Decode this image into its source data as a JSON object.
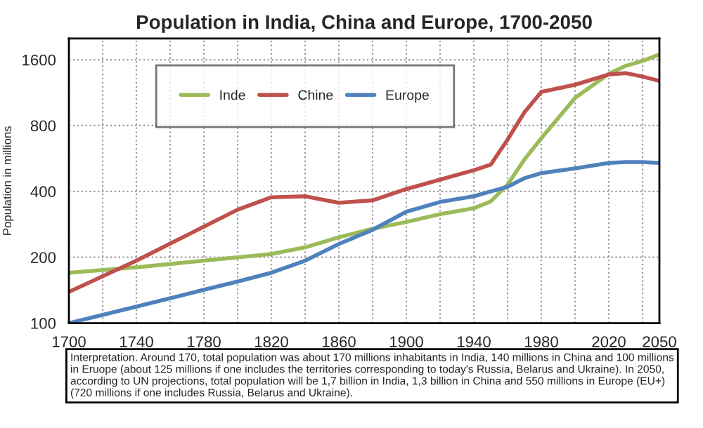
{
  "chart_data": {
    "type": "line",
    "title": "Population in India, China and Europe, 1700-2050",
    "ylabel": "Population in millions",
    "x": [
      1700,
      1740,
      1780,
      1800,
      1820,
      1840,
      1860,
      1880,
      1900,
      1920,
      1940,
      1950,
      1960,
      1970,
      1980,
      2000,
      2020,
      2030,
      2040,
      2050
    ],
    "series": [
      {
        "name": "Inde",
        "color": "#9bbb59",
        "values": [
          170,
          180,
          193,
          200,
          207,
          222,
          247,
          270,
          290,
          315,
          335,
          360,
          430,
          560,
          700,
          1070,
          1380,
          1500,
          1580,
          1690
        ]
      },
      {
        "name": "Chine",
        "color": "#c0504d",
        "values": [
          139,
          193,
          276,
          330,
          376,
          380,
          355,
          364,
          410,
          453,
          500,
          530,
          690,
          920,
          1140,
          1230,
          1370,
          1390,
          1340,
          1280
        ]
      },
      {
        "name": "Europe",
        "color": "#4f81bd",
        "values": [
          100,
          119,
          142,
          155,
          170,
          193,
          230,
          267,
          323,
          358,
          380,
          400,
          420,
          460,
          485,
          510,
          540,
          545,
          545,
          540
        ]
      }
    ],
    "log": "y",
    "ylim": [
      100,
      2000
    ],
    "yticks": [
      100,
      200,
      400,
      800,
      1600
    ],
    "xlim": [
      1700,
      2050
    ],
    "xticks": [
      1700,
      {
        "value": 1720,
        "label": null
      },
      1740,
      {
        "value": 1760,
        "label": null
      },
      1780,
      {
        "value": 1800,
        "label": null
      },
      1820,
      {
        "value": 1840,
        "label": null
      },
      1860,
      {
        "value": 1880,
        "label": null
      },
      1900,
      {
        "value": 1920,
        "label": null
      },
      1940,
      {
        "value": 1960,
        "label": null
      },
      1980,
      {
        "value": 2000,
        "label": null
      },
      2020,
      {
        "value": 2040,
        "label": null
      },
      2050
    ],
    "grid": true,
    "legend": "top",
    "marker": "none",
    "line_style": "solid",
    "annotations": [
      "Interpretation. Around 170, total population was about 170 millions inhabitants in India, 140 millions in China and 100 millions in Eruope (about 125 millions if one includes the territories corresponding to today's Russia, Belarus and Ukraine). In 2050, according to UN projections, total population will be 1,7 billion in India, 1,3 billion in China and 550 millions in Europe (EU+) (720 millions if one includes Russia, Belarus and Ukraine)."
    ]
  }
}
